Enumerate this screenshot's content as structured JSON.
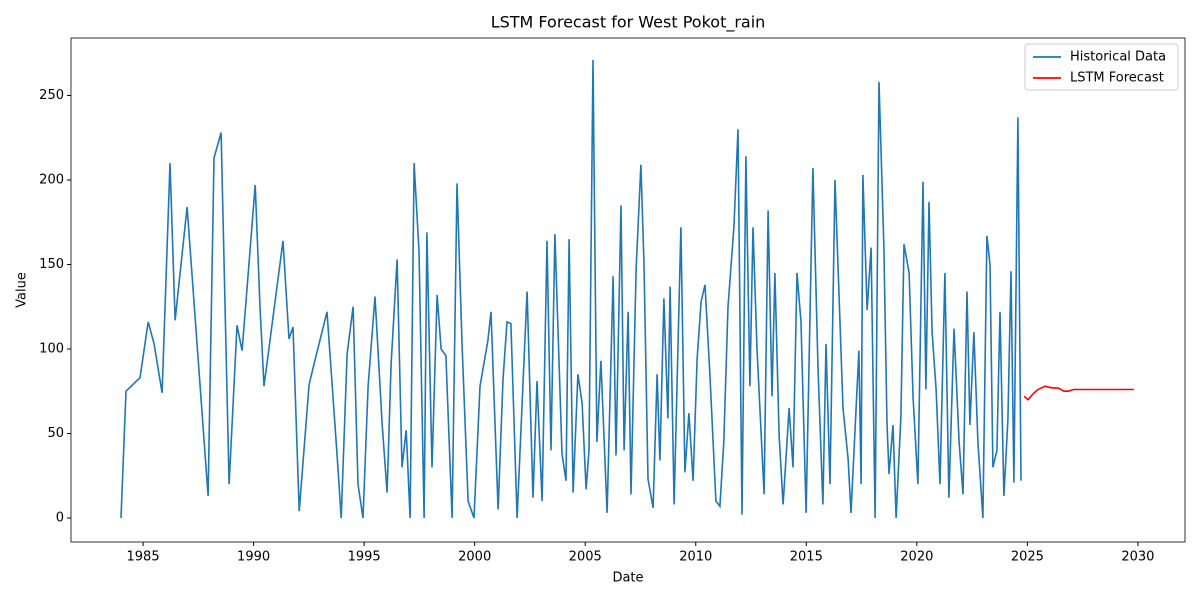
{
  "chart_data": {
    "type": "line",
    "title": "LSTM Forecast for West Pokot_rain",
    "x_label": "Date",
    "y_label": "Value",
    "xlim": [
      1981.74,
      2032.13
    ],
    "ylim": [
      -14.2,
      284
    ],
    "xticks": [
      1985,
      1990,
      1995,
      2000,
      2005,
      2010,
      2015,
      2020,
      2025,
      2030
    ],
    "yticks": [
      0,
      50,
      100,
      150,
      200,
      250
    ],
    "legend": "upper right",
    "series": [
      {
        "name": "Historical Data",
        "color": "#1f77b4",
        "x": [
          1984.0,
          1984.23,
          1984.86,
          1985.23,
          1985.5,
          1985.86,
          1986.22,
          1986.45,
          1986.99,
          1987.94,
          1988.21,
          1988.53,
          1988.89,
          1989.25,
          1989.48,
          1990.07,
          1990.29,
          1990.47,
          1991.33,
          1991.6,
          1991.78,
          1992.06,
          1992.51,
          1992.73,
          1993.32,
          1993.77,
          1993.96,
          1994.23,
          1994.5,
          1994.72,
          1994.95,
          1995.18,
          1995.49,
          1995.81,
          1996.04,
          1996.22,
          1996.49,
          1996.71,
          1996.9,
          1997.08,
          1997.26,
          1997.48,
          1997.71,
          1997.84,
          1998.07,
          1998.3,
          1998.48,
          1998.7,
          1998.98,
          1999.2,
          1999.43,
          1999.7,
          1999.97,
          2000.24,
          2000.6,
          2000.74,
          2001.06,
          2001.28,
          2001.46,
          2001.64,
          2001.92,
          2002.23,
          2002.37,
          2002.64,
          2002.82,
          2003.05,
          2003.27,
          2003.45,
          2003.63,
          2003.95,
          2004.13,
          2004.27,
          2004.45,
          2004.67,
          2004.86,
          2005.04,
          2005.17,
          2005.35,
          2005.53,
          2005.71,
          2005.99,
          2006.26,
          2006.39,
          2006.62,
          2006.76,
          2006.94,
          2007.07,
          2007.3,
          2007.52,
          2007.66,
          2007.84,
          2008.07,
          2008.25,
          2008.38,
          2008.56,
          2008.74,
          2008.84,
          2009.02,
          2009.33,
          2009.51,
          2009.69,
          2009.88,
          2010.06,
          2010.24,
          2010.42,
          2010.64,
          2010.91,
          2011.09,
          2011.27,
          2011.46,
          2011.73,
          2011.91,
          2012.09,
          2012.27,
          2012.45,
          2012.59,
          2012.77,
          2013.09,
          2013.27,
          2013.45,
          2013.58,
          2013.77,
          2013.95,
          2014.22,
          2014.4,
          2014.58,
          2014.76,
          2014.99,
          2015.3,
          2015.53,
          2015.75,
          2015.89,
          2016.07,
          2016.3,
          2016.66,
          2016.89,
          2017.02,
          2017.38,
          2017.48,
          2017.56,
          2017.75,
          2017.93,
          2018.11,
          2018.29,
          2018.51,
          2018.65,
          2018.74,
          2018.92,
          2019.06,
          2019.28,
          2019.42,
          2019.65,
          2019.83,
          2020.05,
          2020.28,
          2020.41,
          2020.55,
          2020.69,
          2020.87,
          2021.05,
          2021.27,
          2021.45,
          2021.68,
          2021.91,
          2022.09,
          2022.27,
          2022.4,
          2022.58,
          2022.76,
          2022.99,
          2023.17,
          2023.31,
          2023.44,
          2023.62,
          2023.76,
          2023.94,
          2024.12,
          2024.26,
          2024.39,
          2024.57,
          2024.71
        ],
        "values": [
          0,
          75,
          83,
          116,
          103,
          74,
          210,
          117,
          184,
          13,
          213,
          228,
          20,
          114,
          99,
          197,
          125,
          78,
          164,
          106,
          113,
          4,
          79,
          91,
          122,
          38,
          0,
          97,
          125,
          20,
          0,
          78,
          131,
          56,
          15,
          91,
          153,
          30,
          52,
          0,
          210,
          158,
          0,
          169,
          30,
          132,
          100,
          96,
          0,
          198,
          102,
          10,
          0,
          78,
          105,
          122,
          5,
          82,
          116,
          115,
          0,
          93,
          134,
          12,
          81,
          10,
          164,
          40,
          168,
          38,
          22,
          165,
          15,
          85,
          68,
          17,
          40,
          271,
          45,
          93,
          3,
          143,
          37,
          185,
          40,
          122,
          14,
          147,
          209,
          150,
          23,
          6,
          85,
          34,
          130,
          59,
          137,
          8,
          172,
          27,
          62,
          22,
          94,
          128,
          138,
          85,
          10,
          7,
          45,
          125,
          173,
          230,
          2,
          214,
          78,
          172,
          100,
          14,
          182,
          72,
          145,
          49,
          8,
          65,
          30,
          145,
          116,
          3,
          207,
          89,
          8,
          103,
          20,
          200,
          65,
          35,
          3,
          99,
          20,
          203,
          123,
          160,
          0,
          258,
          160,
          56,
          26,
          55,
          0,
          60,
          162,
          145,
          71,
          20,
          199,
          76,
          187,
          110,
          76,
          20,
          145,
          12,
          112,
          45,
          14,
          134,
          55,
          110,
          45,
          0,
          167,
          150,
          30,
          40,
          122,
          13,
          58,
          146,
          21,
          237,
          22
        ]
      },
      {
        "name": "LSTM Forecast",
        "color": "#ff0000",
        "x": [
          2024.85,
          2025.03,
          2025.3,
          2025.48,
          2025.8,
          2026.11,
          2026.38,
          2026.66,
          2026.84,
          2027.11,
          2027.83,
          2029.82
        ],
        "values": [
          72,
          70,
          74,
          76,
          78,
          77,
          77,
          75,
          75,
          76,
          76,
          76
        ]
      }
    ]
  }
}
